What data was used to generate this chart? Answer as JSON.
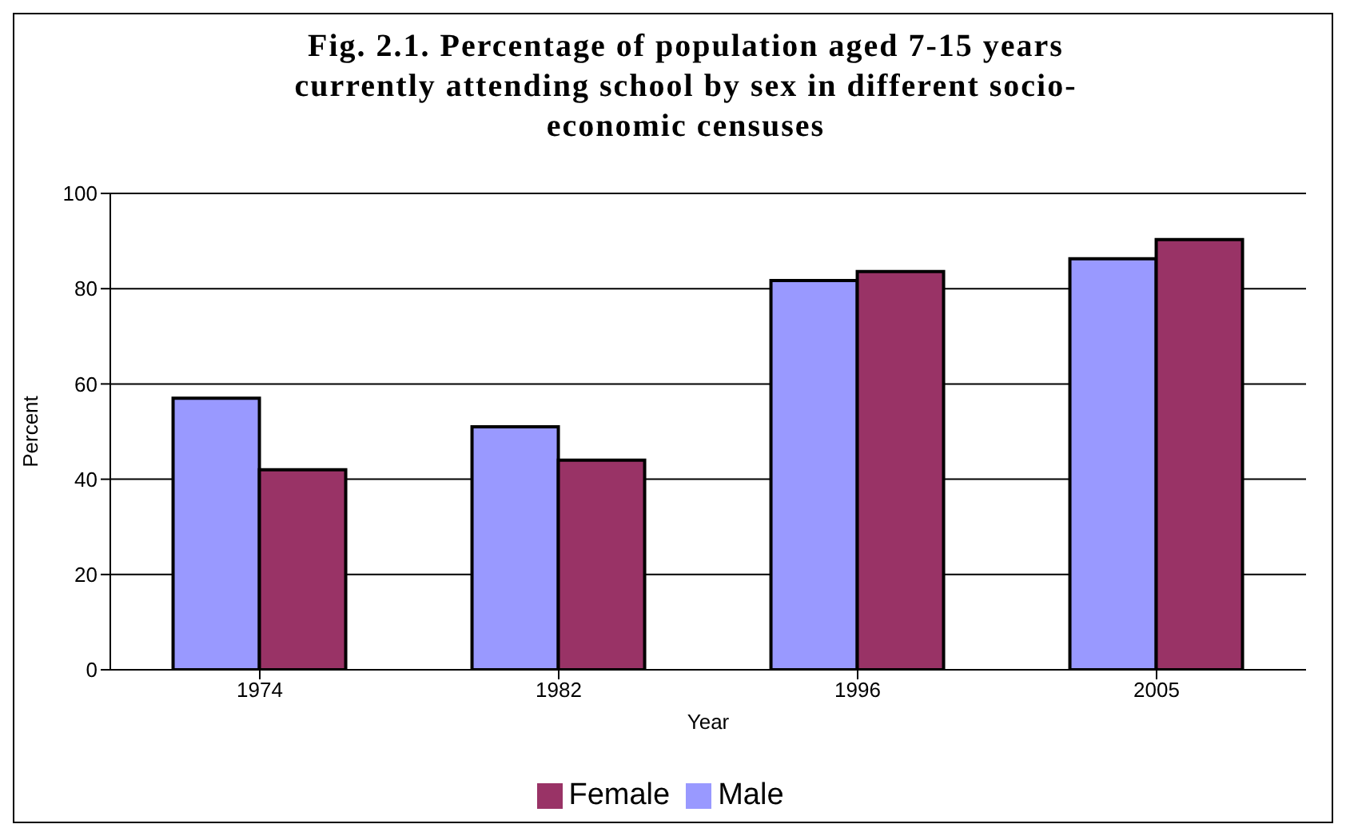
{
  "chart_data": {
    "type": "bar",
    "title": "Fig. 2.1.  Percentage of population aged 7-15 years currently attending school by sex in different socio-economic censuses",
    "xlabel": "Year",
    "ylabel": "Percent",
    "categories": [
      "1974",
      "1982",
      "1996",
      "2005"
    ],
    "series": [
      {
        "name": "Male",
        "color": "#9999ff",
        "values": [
          57,
          51,
          81.7,
          86.3
        ]
      },
      {
        "name": "Female",
        "color": "#993366",
        "values": [
          42,
          44,
          83.6,
          90.3
        ]
      }
    ],
    "ylim": [
      0,
      100
    ],
    "yticks": [
      0,
      20,
      40,
      60,
      80,
      100
    ],
    "grid": "y",
    "legend": "bottom"
  }
}
